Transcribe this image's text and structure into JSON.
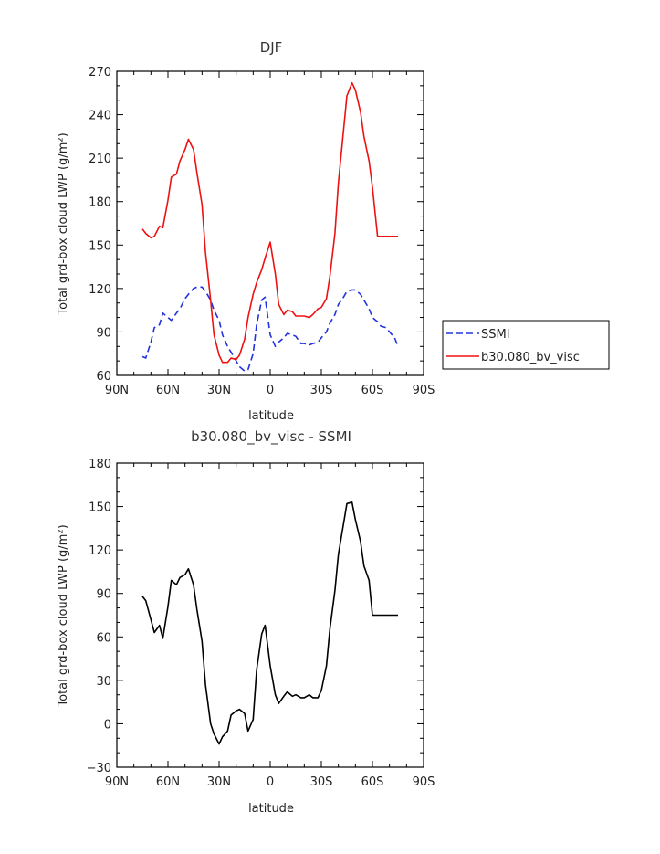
{
  "chart_data": [
    {
      "type": "line",
      "title": "DJF",
      "xlabel": "latitude",
      "ylabel": "Total grd-box cloud LWP (g/m²)",
      "xlim": [
        -90,
        90
      ],
      "ylim": [
        60,
        270
      ],
      "xticks": [
        -90,
        -60,
        -30,
        0,
        30,
        60,
        90
      ],
      "xtick_labels": [
        "90N",
        "60N",
        "30N",
        "0",
        "30S",
        "60S",
        "90S"
      ],
      "yticks": [
        60,
        90,
        120,
        150,
        180,
        210,
        240,
        270
      ],
      "grid": false,
      "legend_position": "right",
      "series": [
        {
          "name": "SSMI",
          "color": "#2233dd",
          "dash": "dashed",
          "x": [
            -75,
            -73,
            -70,
            -68,
            -65,
            -63,
            -60,
            -58,
            -55,
            -53,
            -50,
            -48,
            -45,
            -43,
            -40,
            -38,
            -35,
            -33,
            -30,
            -28,
            -25,
            -23,
            -20,
            -18,
            -15,
            -13,
            -10,
            -8,
            -5,
            -3,
            0,
            3,
            5,
            8,
            10,
            13,
            15,
            18,
            20,
            23,
            25,
            28,
            30,
            33,
            35,
            38,
            40,
            43,
            45,
            48,
            50,
            53,
            55,
            58,
            60,
            63,
            65,
            68,
            70,
            73,
            75
          ],
          "y": [
            73,
            72,
            83,
            93,
            95,
            103,
            100,
            98,
            103,
            106,
            113,
            116,
            120,
            121,
            121,
            118,
            112,
            105,
            98,
            88,
            80,
            76,
            70,
            66,
            63,
            64,
            75,
            95,
            112,
            114,
            88,
            80,
            83,
            86,
            89,
            88,
            87,
            82,
            82,
            81,
            82,
            83,
            86,
            90,
            96,
            102,
            109,
            114,
            118,
            119,
            119,
            116,
            112,
            106,
            100,
            97,
            94,
            93,
            90,
            86,
            80
          ]
        },
        {
          "name": "b30.080_bv_visc",
          "color": "#ee1111",
          "dash": "solid",
          "x": [
            -75,
            -73,
            -70,
            -68,
            -65,
            -63,
            -60,
            -58,
            -55,
            -53,
            -50,
            -48,
            -45,
            -43,
            -40,
            -38,
            -35,
            -33,
            -30,
            -28,
            -25,
            -23,
            -20,
            -18,
            -15,
            -13,
            -10,
            -8,
            -5,
            -3,
            0,
            3,
            5,
            8,
            10,
            13,
            15,
            18,
            20,
            23,
            25,
            28,
            30,
            33,
            35,
            38,
            40,
            43,
            45,
            48,
            50,
            53,
            55,
            58,
            60,
            63,
            65,
            68,
            70,
            73,
            75
          ],
          "y": [
            161,
            158,
            155,
            156,
            163,
            162,
            181,
            197,
            199,
            208,
            216,
            223,
            216,
            200,
            178,
            145,
            112,
            88,
            74,
            69,
            69,
            72,
            71,
            74,
            85,
            100,
            116,
            124,
            133,
            141,
            152,
            130,
            109,
            102,
            105,
            104,
            101,
            101,
            101,
            100,
            102,
            106,
            107,
            113,
            128,
            158,
            193,
            229,
            253,
            262,
            257,
            242,
            225,
            208,
            190,
            156,
            156,
            156,
            156,
            156,
            156
          ]
        }
      ]
    },
    {
      "type": "line",
      "title": "b30.080_bv_visc - SSMI",
      "xlabel": "latitude",
      "ylabel": "Total grd-box cloud LWP (g/m²)",
      "xlim": [
        -90,
        90
      ],
      "ylim": [
        -30,
        180
      ],
      "xticks": [
        -90,
        -60,
        -30,
        0,
        30,
        60,
        90
      ],
      "xtick_labels": [
        "90N",
        "60N",
        "30N",
        "0",
        "30S",
        "60S",
        "90S"
      ],
      "yticks": [
        -30,
        0,
        30,
        60,
        90,
        120,
        150,
        180
      ],
      "grid": false,
      "series": [
        {
          "color": "#000000",
          "dash": "solid",
          "x": [
            -75,
            -73,
            -70,
            -68,
            -65,
            -63,
            -60,
            -58,
            -55,
            -53,
            -50,
            -48,
            -45,
            -43,
            -40,
            -38,
            -35,
            -33,
            -30,
            -28,
            -25,
            -23,
            -20,
            -18,
            -15,
            -13,
            -10,
            -8,
            -5,
            -3,
            0,
            3,
            5,
            8,
            10,
            13,
            15,
            18,
            20,
            23,
            25,
            28,
            30,
            33,
            35,
            38,
            40,
            43,
            45,
            48,
            50,
            53,
            55,
            58,
            60,
            63,
            65,
            68,
            70,
            73,
            75
          ],
          "y": [
            88,
            85,
            72,
            63,
            68,
            59,
            81,
            99,
            96,
            101,
            103,
            107,
            96,
            79,
            57,
            27,
            0,
            -7,
            -14,
            -9,
            -5,
            6,
            9,
            10,
            7,
            -5,
            3,
            37,
            62,
            68,
            40,
            20,
            14,
            19,
            22,
            19,
            20,
            18,
            18,
            20,
            18,
            18,
            23,
            40,
            65,
            92,
            117,
            138,
            152,
            153,
            141,
            126,
            109,
            99,
            75,
            75,
            75,
            75,
            75,
            75,
            75
          ]
        }
      ]
    }
  ],
  "legend": {
    "items": [
      "SSMI",
      "b30.080_bv_visc"
    ],
    "colors": [
      "#2233dd",
      "#ee1111"
    ]
  }
}
